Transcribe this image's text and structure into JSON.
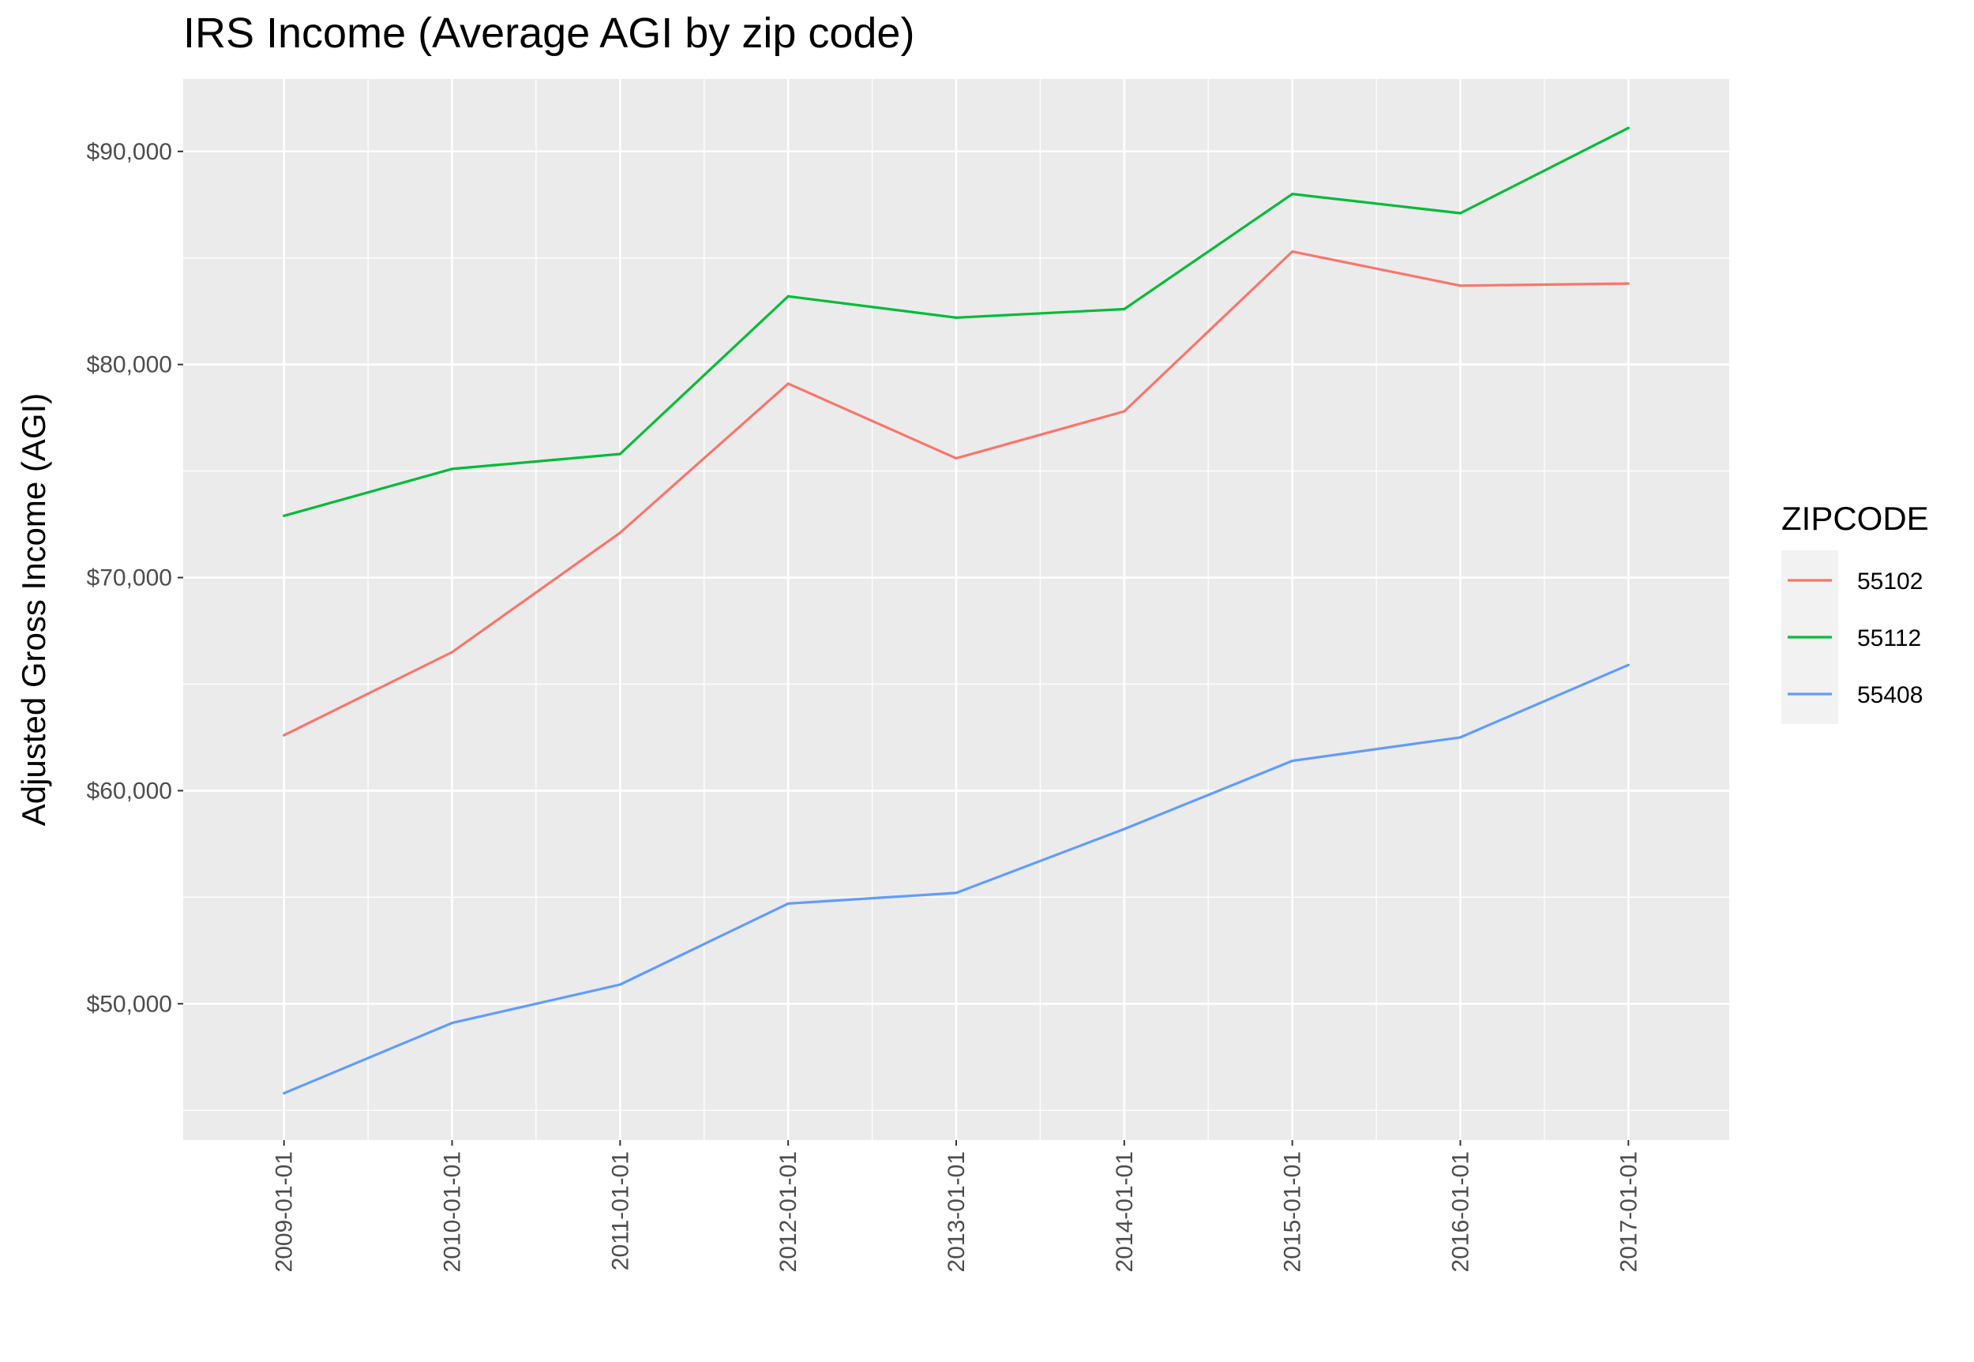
{
  "chart_data": {
    "type": "line",
    "title": "IRS Income (Average AGI by zip code)",
    "xlabel": "",
    "ylabel": "Adjusted Gross Income (AGI)",
    "x": [
      "2009-01-01",
      "2010-01-01",
      "2011-01-01",
      "2012-01-01",
      "2013-01-01",
      "2014-01-01",
      "2015-01-01",
      "2016-01-01",
      "2017-01-01"
    ],
    "x_tick_labels": [
      "2009-01-01",
      "2010-01-01",
      "2011-01-01",
      "2012-01-01",
      "2013-01-01",
      "2014-01-01",
      "2015-01-01",
      "2016-01-01",
      "2017-01-01"
    ],
    "ylim": [
      43600,
      93400
    ],
    "y_ticks": [
      50000,
      60000,
      70000,
      80000,
      90000
    ],
    "y_tick_labels": [
      "$50,000",
      "$60,000",
      "$70,000",
      "$80,000",
      "$90,000"
    ],
    "grid": true,
    "legend": {
      "title": "ZIPCODE",
      "placement": "right"
    },
    "series": [
      {
        "name": "55102",
        "color": "#F8766D",
        "values": [
          62600,
          66500,
          72100,
          79100,
          75600,
          77800,
          85300,
          83700,
          83800
        ]
      },
      {
        "name": "55112",
        "color": "#00BA38",
        "values": [
          72900,
          75100,
          75800,
          83200,
          82200,
          82600,
          88000,
          87100,
          91100
        ]
      },
      {
        "name": "55408",
        "color": "#619CFF",
        "values": [
          45800,
          49100,
          50900,
          54700,
          55200,
          58200,
          61400,
          62500,
          65900
        ]
      }
    ]
  }
}
